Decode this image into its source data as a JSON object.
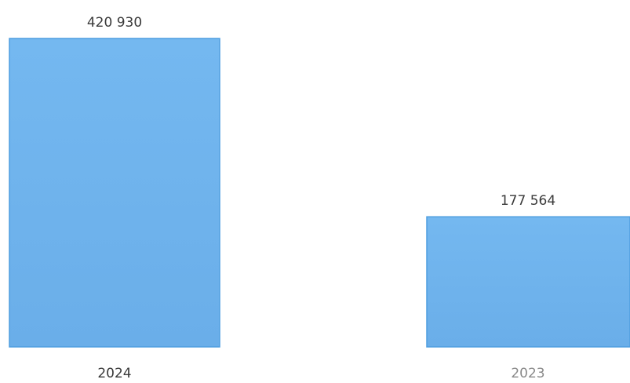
{
  "chart_data": {
    "type": "bar",
    "title": "",
    "xlabel": "",
    "ylabel": "",
    "categories": [
      "2024",
      "2023"
    ],
    "values": [
      420930,
      177564
    ],
    "value_labels": [
      "420 930",
      "177 564"
    ],
    "ylim": [
      0,
      420930
    ],
    "grid": false,
    "legend": "none",
    "bar_color": "#6fb3ee",
    "bar_edge_color": "#4f9ee0"
  }
}
